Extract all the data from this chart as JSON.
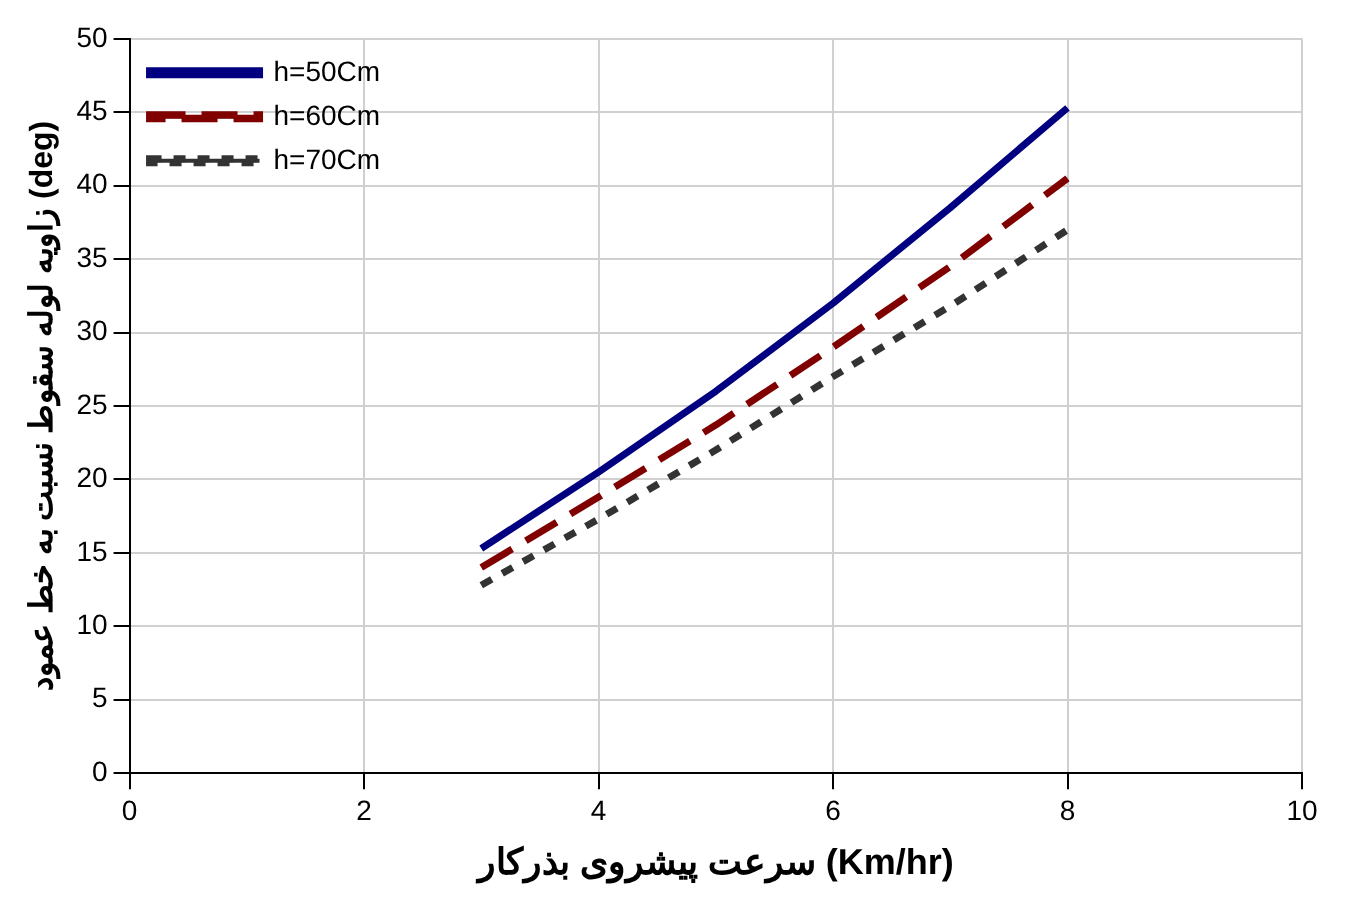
{
  "chart_data": {
    "type": "line",
    "xlabel": "سرعت پیشروی بذرکار (Km/hr)",
    "ylabel": "زاویه لوله سقوط نسبت به خط عمود (deg)",
    "x": [
      3,
      4,
      5,
      6,
      7,
      8
    ],
    "series": [
      {
        "name": "h=50Cm",
        "color": "#000080",
        "line_style": "solid",
        "values": [
          15.3,
          20.5,
          26,
          32,
          38.5,
          45.3
        ]
      },
      {
        "name": "h=60Cm",
        "color": "#800000",
        "line_style": "dashed",
        "values": [
          14,
          18.8,
          23.7,
          29,
          34.5,
          40.5
        ]
      },
      {
        "name": "h=70Cm",
        "color": "#333333",
        "line_style": "dotted",
        "values": [
          12.8,
          17.3,
          22,
          27,
          31.8,
          37
        ]
      }
    ],
    "xlim": [
      0,
      10
    ],
    "xticks": [
      0,
      2,
      4,
      6,
      8,
      10
    ],
    "ylim": [
      0,
      50
    ],
    "yticks": [
      0,
      5,
      10,
      15,
      20,
      25,
      30,
      35,
      40,
      45,
      50
    ],
    "grid": true,
    "legend": "top left",
    "marker": "none"
  }
}
